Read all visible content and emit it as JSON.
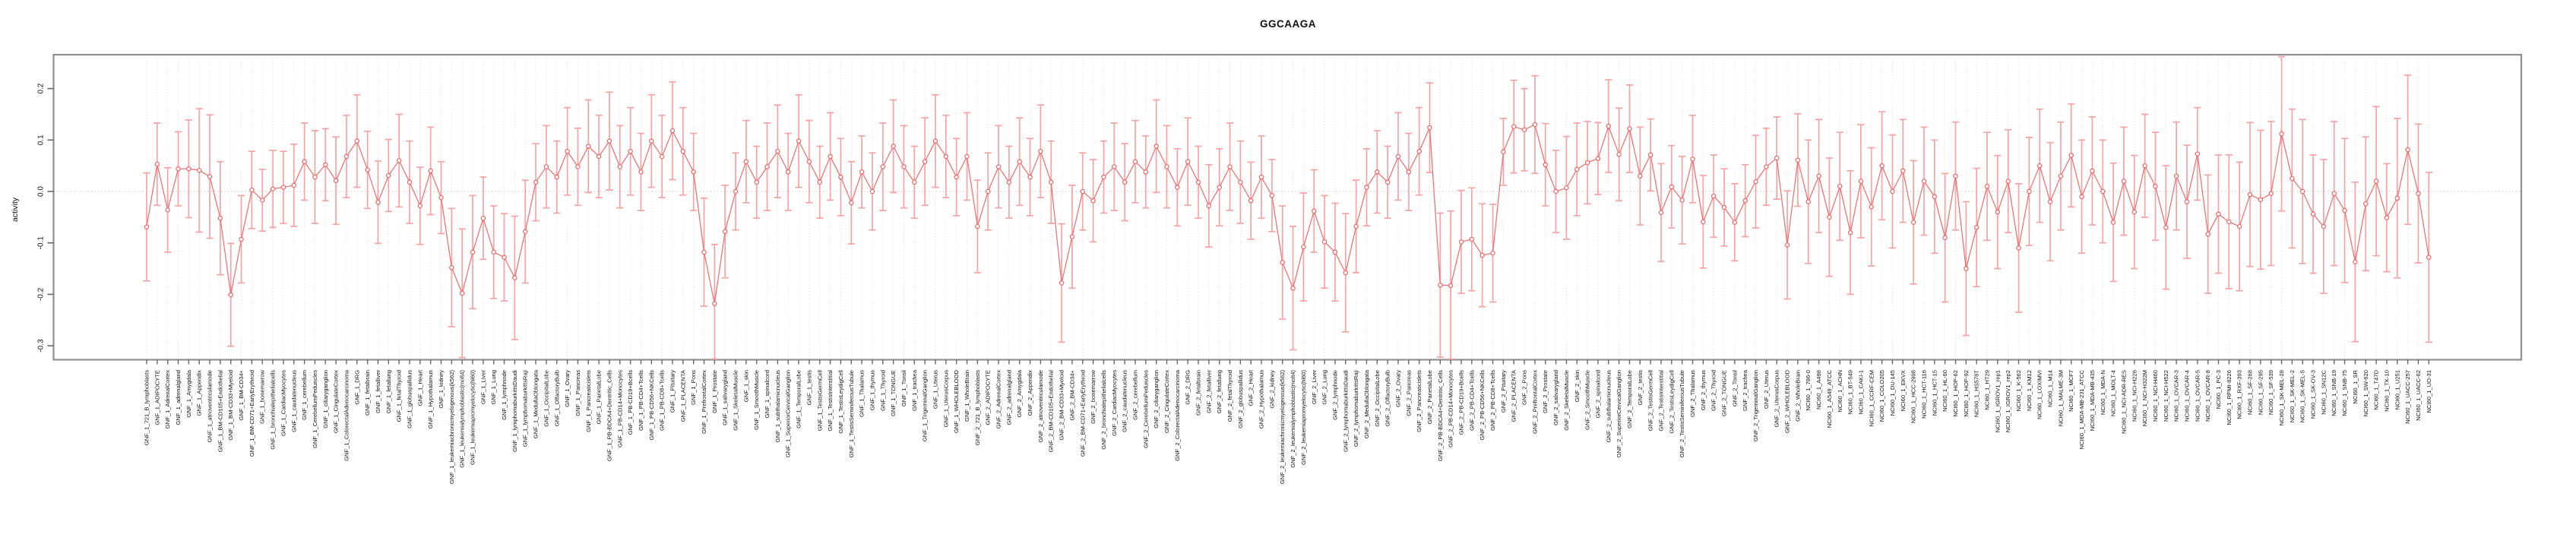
{
  "title": "GGCAAGA",
  "ylabel": "activity",
  "chart_data": {
    "type": "line",
    "subtype": "points-with-error-bars",
    "title": "GGCAAGA",
    "xlabel": "",
    "ylabel": "activity",
    "ylim": [
      -0.326,
      0.266
    ],
    "yticks": [
      0.2,
      0.1,
      0.0,
      -0.1,
      -0.2,
      -0.3
    ],
    "ytick_labels": [
      "0.2",
      "0.1",
      "0.0",
      "-0.1",
      "-0.2",
      "-0.3"
    ],
    "grid": "vertical-dotted-per-category-plus-zero-line",
    "legend": "none",
    "colors": {
      "marker": "#ef6a6a",
      "line": "#ef6a6a",
      "error_bar": "#f8a2a2",
      "grid": "#dcdcdc",
      "zero_line": "#d9d9d9",
      "box": "#8f8f8f",
      "tick": "#666666",
      "text": "#111111"
    },
    "categories": [
      "GNF_1_721_B_lymphoblasts",
      "GNF_1_ADIPOCYTE",
      "GNF_1_AdrenalCortex",
      "GNF_1_adrenalgland",
      "GNF_1_Amygdala",
      "GNF_1_Appendix",
      "GNF_1_atrioventricularnode",
      "GNF_1_BM-CD105+Endothelial",
      "GNF_1_BM-CD33+Myeloid",
      "GNF_1_BM-CD34+",
      "GNF_1_BM-CD71+EarlyErythroid",
      "GNF_1_bonemarrow",
      "GNF_1_bronchialepithelialcells",
      "GNF_1_CardiacMyocytes",
      "GNF_1_caudatenucleus",
      "GNF_1_cerebellum",
      "GNF_1_CerebellumPeduncles",
      "GNF_1_ciliaryganglion",
      "GNF_1_CingulateCortex",
      "GNF_1_ColorectalAdenocarcinoma",
      "GNF_1_DRG",
      "GNF_1_fetalbrain",
      "GNF_1_fetalliver",
      "GNF_1_fetallung",
      "GNF_1_fetalThyroid",
      "GNF_1_globuspallidus",
      "GNF_1_Heart",
      "GNF_1_Hypothalamus",
      "GNF_1_kidney",
      "GNF_1_leukemiachronicmyelogenous(k562)",
      "GNF_1_leukemialymphoblastic(molt4)",
      "GNF_1_leukemiapromyelocytic(hl60)",
      "GNF_1_Liver",
      "GNF_1_Lung",
      "GNF_1_lymphnode",
      "GNF_1_lymphomaburkittsDaudi",
      "GNF_1_lymphomaburkittsRaji",
      "GNF_1_MedullaOblongata",
      "GNF_1_OccipitalLobe",
      "GNF_1_OlfactoryBulb",
      "GNF_1_Ovary",
      "GNF_1_Pancreas",
      "GNF_1_Pancreaticislets",
      "GNF_1_ParietalLobe",
      "GNF_1_PB-BDCA4+Dentritic_Cells",
      "GNF_1_PB-CD14+Monocytes",
      "GNF_1_PB-CD19+Bcells",
      "GNF_1_PB-CD4+Tcells",
      "GNF_1_PB-CD56+NKCells",
      "GNF_1_PB-CD8+Tcells",
      "GNF_1_Pituitary",
      "GNF_1_PLACENTA",
      "GNF_1_Pons",
      "GNF_1_PrefrontalCortex",
      "GNF_1_Prostate",
      "GNF_1_salivarygland",
      "GNF_1_SkeletalMuscle",
      "GNF_1_skin",
      "GNF_1_SmoothMuscle",
      "GNF_1_spinalcord",
      "GNF_1_subthalamicnucleus",
      "GNF_1_SuperiorCervicalGanglion",
      "GNF_1_TemporalLobe",
      "GNF_1_testis",
      "GNF_1_TestisGermCell",
      "GNF_1_TestisInterstitial",
      "GNF_1_TestisLeydigCell",
      "GNF_1_TestisSeminiferousTubule",
      "GNF_1_Thalamus",
      "GNF_1_thymus",
      "GNF_1_Thyroid",
      "GNF_1_TONGUE",
      "GNF_1_Tonsil",
      "GNF_1_trachea",
      "GNF_1_TrigeminalGanglion",
      "GNF_1_Uterus",
      "GNF_1_UterusCorpus",
      "GNF_1_WHOLEBLOOD",
      "GNF_1_WholeBrain",
      "GNF_2_721_B_lymphoblasts",
      "GNF_2_ADIPOCYTE",
      "GNF_2_AdrenalCortex",
      "GNF_2_adrenalgland",
      "GNF_2_Amygdala",
      "GNF_2_Appendix",
      "GNF_2_atrioventricularnode",
      "GNF_2_BM-CD105+Endothelial",
      "GNF_2_BM-CD33+Myeloid",
      "GNF_2_BM-CD34+",
      "GNF_2_BM-CD71+EarlyErythroid",
      "GNF_2_bonemarrow",
      "GNF_2_bronchialepithelialcells",
      "GNF_2_CardiacMyocytes",
      "GNF_2_caudatenucleus",
      "GNF_2_cerebellum",
      "GNF_2_CerebellumPeduncles",
      "GNF_2_ciliaryganglion",
      "GNF_2_CingulateCortex",
      "GNF_2_ColorectalAdenocarcinoma",
      "GNF_2_DRG",
      "GNF_2_fetalbrain",
      "GNF_2_fetalliver",
      "GNF_2_fetallung",
      "GNF_2_fetalThyroid",
      "GNF_2_globuspallidus",
      "GNF_2_Heart",
      "GNF_2_Hypothalamus",
      "GNF_2_kidney",
      "GNF_2_leukemiachronicmyelogenous(k562)",
      "GNF_2_leukemialymphoblastic(molt4)",
      "GNF_2_leukemiapromyelocytic(hl60)",
      "GNF_2_Liver",
      "GNF_2_Lung",
      "GNF_2_lymphnode",
      "GNF_2_lymphomaburkittsDaudi",
      "GNF_2_lymphomaburkittsRaji",
      "GNF_2_MedullaOblongata",
      "GNF_2_OccipitalLobe",
      "GNF_2_OlfactoryBulb",
      "GNF_2_Ovary",
      "GNF_2_Pancreas",
      "GNF_2_Pancreaticislets",
      "GNF_2_ParietalLobe",
      "GNF_2_PB-BDCA4+Dentritic_Cells",
      "GNF_2_PB-CD14+Monocytes",
      "GNF_2_PB-CD19+Bcells",
      "GNF_2_PB-CD4+Tcells",
      "GNF_2_PB-CD56+NKCells",
      "GNF_2_PB-CD8+Tcells",
      "GNF_2_Pituitary",
      "GNF_2_PLACENTA",
      "GNF_2_Pons",
      "GNF_2_PrefrontalCortex",
      "GNF_2_Prostate",
      "GNF_2_salivarygland",
      "GNF_2_SkeletalMuscle",
      "GNF_2_skin",
      "GNF_2_SmoothMuscle",
      "GNF_2_spinalcord",
      "GNF_2_subthalamicnucleus",
      "GNF_2_SuperiorCervicalGanglion",
      "GNF_2_TemporalLobe",
      "GNF_2_testis",
      "GNF_2_TestisGermCell",
      "GNF_2_TestisInterstitial",
      "GNF_2_TestisLeydigCell",
      "GNF_2_TestisSeminiferousTubule",
      "GNF_2_Thalamus",
      "GNF_2_thymus",
      "GNF_2_Thyroid",
      "GNF_2_TONGUE",
      "GNF_2_Tonsil",
      "GNF_2_trachea",
      "GNF_2_TrigeminalGanglion",
      "GNF_2_Uterus",
      "GNF_2_UterusCorpus",
      "GNF_2_WHOLEBLOOD",
      "GNF_2_WholeBrain",
      "NCI60_1_786-0",
      "NCI60_1_A498",
      "NCI60_1_A549_ATCC",
      "NCI60_1_ACHN",
      "NCI60_1_BT-549",
      "NCI60_1_CAKI-1",
      "NCI60_1_CCRF-CEM",
      "NCI60_1_COLO205",
      "NCI60_1_DU-145",
      "NCI60_1_EKVX",
      "NCI60_1_HCC-2998",
      "NCI60_1_HCT-116",
      "NCI60_1_HCT-15",
      "NCI60_1_HL-60",
      "NCI60_1_HOP-62",
      "NCI60_1_HOP-92",
      "NCI60_1_HS578T",
      "NCI60_1_HT29",
      "NCI60_1_IGROV1_rep1",
      "NCI60_1_IGROV1_rep2",
      "NCI60_1_K-562",
      "NCI60_1_KM12",
      "NCI60_1_LOXIMVI",
      "NCI60_1_M14",
      "NCI60_1_MALME-3M",
      "NCI60_1_MCF7",
      "NCI60_1_MDA-MB-231_ATCC",
      "NCI60_1_MDA-MB-435",
      "NCI60_1_MDA-N",
      "NCI60_1_MOLT-4",
      "NCI60_1_NCI-ADR-RES",
      "NCI60_1_NCI-H226",
      "NCI60_1_NCI-H322M",
      "NCI60_1_NCI-H460",
      "NCI60_1_NCI-H522",
      "NCI60_1_OVCAR-3",
      "NCI60_1_OVCAR-4",
      "NCI60_1_OVCAR-5",
      "NCI60_1_OVCAR-8",
      "NCI60_1_PC-3",
      "NCI60_1_RPMI-8226",
      "NCI60_1_RXF-393",
      "NCI60_1_SF-268",
      "NCI60_1_SF-295",
      "NCI60_1_SF-539",
      "NCI60_1_SK-MEL-28",
      "NCI60_1_SK-MEL-2",
      "NCI60_1_SK-MEL-5",
      "NCI60_1_SK-OV-3",
      "NCI60_1_SN12C",
      "NCI60_1_SNB-19",
      "NCI60_1_SNB-75",
      "NCI60_1_SR",
      "NCI60_1_SW-620",
      "NCI60_1_T47D",
      "NCI60_1_TK-10",
      "NCI60_1_U251",
      "NCI60_1_UACC-257",
      "NCI60_1_UACC-62",
      "NCI60_1_UO-31"
    ],
    "values": [
      -0.069,
      0.053,
      -0.036,
      0.044,
      0.044,
      0.041,
      0.029,
      -0.052,
      -0.201,
      -0.093,
      0.003,
      -0.017,
      0.005,
      0.008,
      0.012,
      0.058,
      0.028,
      0.052,
      0.021,
      0.068,
      0.098,
      0.042,
      -0.021,
      0.031,
      0.06,
      0.018,
      -0.028,
      0.04,
      -0.012,
      -0.148,
      -0.198,
      -0.118,
      -0.052,
      -0.118,
      -0.128,
      -0.168,
      -0.078,
      0.018,
      0.048,
      0.028,
      0.078,
      0.048,
      0.088,
      0.068,
      0.098,
      0.048,
      0.078,
      0.038,
      0.098,
      0.068,
      0.118,
      0.078,
      0.038,
      -0.118,
      -0.218,
      -0.078,
      0.0,
      0.058,
      0.018,
      0.048,
      0.078,
      0.038,
      0.098,
      0.058,
      0.018,
      0.068,
      0.028,
      -0.022,
      0.038,
      0.0,
      0.048,
      0.088,
      0.048,
      0.018,
      0.058,
      0.098,
      0.068,
      0.028,
      0.068,
      -0.068,
      0.0,
      0.048,
      0.018,
      0.058,
      0.028,
      0.078,
      0.018,
      -0.178,
      -0.088,
      0.0,
      -0.018,
      0.028,
      0.048,
      0.018,
      0.058,
      0.038,
      0.088,
      0.048,
      0.008,
      0.058,
      0.018,
      -0.028,
      0.008,
      0.048,
      0.018,
      -0.018,
      0.028,
      -0.008,
      -0.138,
      -0.188,
      -0.108,
      -0.038,
      -0.098,
      -0.118,
      -0.158,
      -0.068,
      0.008,
      0.038,
      0.018,
      0.068,
      0.038,
      0.078,
      0.124,
      -0.182,
      -0.183,
      -0.098,
      -0.093,
      -0.124,
      -0.12,
      0.077,
      0.126,
      0.12,
      0.13,
      0.052,
      0.0,
      0.007,
      0.043,
      0.056,
      0.064,
      0.127,
      0.072,
      0.122,
      0.03,
      0.071,
      -0.041,
      0.009,
      -0.017,
      0.063,
      -0.059,
      -0.009,
      -0.031,
      -0.06,
      -0.018,
      0.019,
      0.048,
      0.065,
      -0.104,
      0.061,
      -0.02,
      0.03,
      -0.05,
      0.01,
      -0.08,
      0.02,
      -0.03,
      0.05,
      0.0,
      0.04,
      -0.06,
      0.02,
      -0.01,
      -0.09,
      0.03,
      -0.15,
      -0.07,
      0.01,
      -0.04,
      0.02,
      -0.11,
      0.0,
      0.05,
      -0.02,
      0.03,
      0.07,
      -0.01,
      0.04,
      0.0,
      -0.06,
      0.02,
      -0.04,
      0.05,
      0.01,
      -0.07,
      0.03,
      -0.02,
      0.073,
      -0.083,
      -0.044,
      -0.059,
      -0.068,
      -0.006,
      -0.016,
      -0.004,
      0.112,
      0.025,
      0.0,
      -0.044,
      -0.068,
      -0.004,
      -0.037,
      -0.137,
      -0.024,
      0.02,
      -0.051,
      -0.013,
      0.081,
      -0.004,
      -0.128
    ],
    "errors": [
      0.105,
      0.08,
      0.082,
      0.072,
      0.095,
      0.12,
      0.12,
      0.11,
      0.1,
      0.085,
      0.075,
      0.06,
      0.075,
      0.07,
      0.08,
      0.075,
      0.09,
      0.07,
      0.085,
      0.08,
      0.09,
      0.075,
      0.08,
      0.07,
      0.09,
      0.08,
      0.075,
      0.085,
      0.07,
      0.115,
      0.125,
      0.11,
      0.08,
      0.09,
      0.085,
      0.12,
      0.1,
      0.075,
      0.08,
      0.07,
      0.085,
      0.075,
      0.09,
      0.08,
      0.095,
      0.08,
      0.085,
      0.075,
      0.09,
      0.08,
      0.095,
      0.085,
      0.075,
      0.105,
      0.115,
      0.09,
      0.075,
      0.08,
      0.07,
      0.085,
      0.09,
      0.075,
      0.09,
      0.08,
      0.07,
      0.085,
      0.075,
      0.08,
      0.07,
      0.075,
      0.085,
      0.09,
      0.08,
      0.07,
      0.085,
      0.09,
      0.08,
      0.075,
      0.085,
      0.09,
      0.075,
      0.08,
      0.07,
      0.085,
      0.075,
      0.09,
      0.08,
      0.115,
      0.1,
      0.075,
      0.08,
      0.07,
      0.085,
      0.075,
      0.08,
      0.07,
      0.09,
      0.08,
      0.075,
      0.085,
      0.07,
      0.08,
      0.075,
      0.085,
      0.08,
      0.075,
      0.08,
      0.07,
      0.11,
      0.12,
      0.105,
      0.08,
      0.09,
      0.095,
      0.115,
      0.09,
      0.075,
      0.08,
      0.07,
      0.085,
      0.075,
      0.085,
      0.087,
      0.14,
      0.145,
      0.1,
      0.1,
      0.1,
      0.095,
      0.065,
      0.09,
      0.08,
      0.095,
      0.08,
      0.08,
      0.1,
      0.09,
      0.08,
      0.07,
      0.09,
      0.09,
      0.085,
      0.095,
      0.07,
      0.095,
      0.08,
      0.085,
      0.085,
      0.09,
      0.08,
      0.075,
      0.075,
      0.07,
      0.09,
      0.075,
      0.08,
      0.105,
      0.09,
      0.12,
      0.11,
      0.115,
      0.105,
      0.12,
      0.11,
      0.115,
      0.105,
      0.11,
      0.1,
      0.12,
      0.105,
      0.11,
      0.125,
      0.105,
      0.13,
      0.115,
      0.105,
      0.11,
      0.1,
      0.125,
      0.105,
      0.11,
      0.115,
      0.105,
      0.1,
      0.11,
      0.105,
      0.1,
      0.115,
      0.105,
      0.11,
      0.1,
      0.105,
      0.12,
      0.105,
      0.11,
      0.09,
      0.115,
      0.115,
      0.13,
      0.125,
      0.14,
      0.135,
      0.14,
      0.15,
      0.135,
      0.14,
      0.115,
      0.13,
      0.14,
      0.14,
      0.155,
      0.13,
      0.145,
      0.105,
      0.155,
      0.145,
      0.135,
      0.165
    ]
  }
}
